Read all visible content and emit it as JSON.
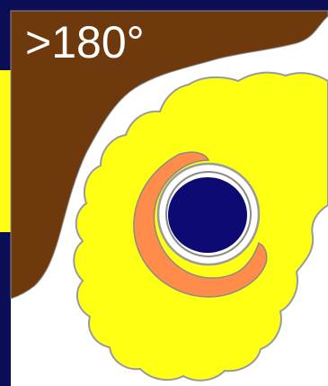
{
  "label": {
    "angle": ">180°"
  },
  "colors": {
    "frame": "#0c0d57",
    "brown_region": "#6e3a0d",
    "background": "#ffffff",
    "yellow_region": "#ffff14",
    "orange_crescent": "#ff8c4a",
    "vessel": "#0d0a74",
    "outline": "#9a9a9a"
  }
}
